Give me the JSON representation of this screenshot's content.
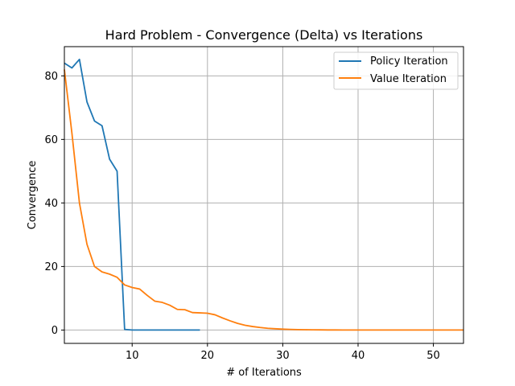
{
  "chart_data": {
    "type": "line",
    "title": "Hard Problem - Convergence (Delta) vs Iterations",
    "xlabel": "# of Iterations",
    "ylabel": "Convergence",
    "xlim": [
      1,
      54
    ],
    "ylim": [
      -4.2,
      89.2
    ],
    "xticks": [
      10,
      20,
      30,
      40,
      50
    ],
    "yticks": [
      0,
      20,
      40,
      60,
      80
    ],
    "grid": true,
    "legend_position": "top-right",
    "series": [
      {
        "name": "Policy Iteration",
        "color": "#1f77b4",
        "x": [
          1,
          2,
          3,
          4,
          5,
          6,
          7,
          8,
          9,
          10,
          11,
          12,
          13,
          14,
          15,
          16,
          17,
          18,
          19
        ],
        "y": [
          84,
          82.5,
          85.2,
          71.8,
          65.8,
          64.3,
          53.8,
          50,
          0.2,
          0,
          0,
          0,
          0,
          0,
          0,
          0,
          0,
          0,
          0
        ]
      },
      {
        "name": "Value Iteration",
        "color": "#ff7f0e",
        "x": [
          1,
          2,
          3,
          4,
          5,
          6,
          7,
          8,
          9,
          10,
          11,
          12,
          13,
          14,
          15,
          16,
          17,
          18,
          19,
          20,
          21,
          22,
          23,
          24,
          25,
          26,
          27,
          28,
          29,
          30,
          31,
          32,
          33,
          34,
          35,
          36,
          37,
          38,
          39,
          40,
          41,
          42,
          43,
          44,
          45,
          46,
          47,
          48,
          49,
          50,
          51,
          52,
          53,
          54
        ],
        "y": [
          82,
          62,
          40,
          27,
          20,
          18.3,
          17.6,
          16.6,
          14.2,
          13.4,
          12.9,
          10.9,
          9.1,
          8.7,
          7.8,
          6.5,
          6.4,
          5.5,
          5.4,
          5.3,
          4.8,
          3.8,
          2.9,
          2.1,
          1.5,
          1.1,
          0.8,
          0.55,
          0.4,
          0.28,
          0.2,
          0.14,
          0.1,
          0.07,
          0.05,
          0.03,
          0.02,
          0.01,
          0.01,
          0,
          0,
          0,
          0,
          0,
          0,
          0,
          0,
          0,
          0,
          0,
          0,
          0,
          0,
          0
        ]
      }
    ]
  }
}
